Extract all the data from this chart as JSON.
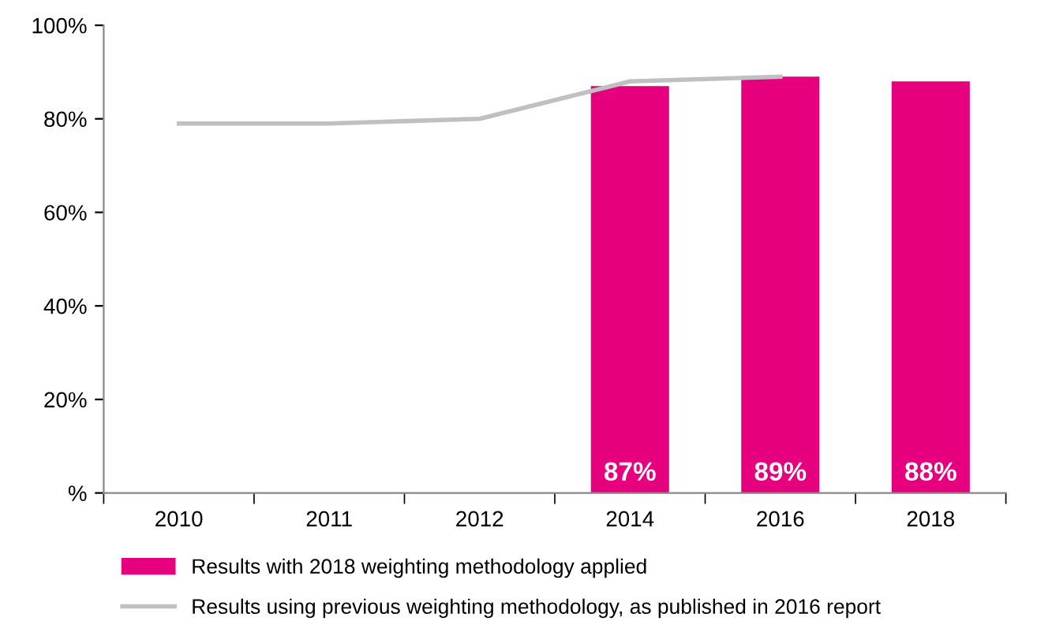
{
  "chart_data": {
    "type": "bar",
    "categories": [
      "2010",
      "2011",
      "2012",
      "2014",
      "2016",
      "2018"
    ],
    "series": [
      {
        "name": "Results with 2018 weighting methodology applied",
        "color": "#e6007e",
        "values": [
          null,
          null,
          null,
          87,
          89,
          88
        ],
        "value_labels": [
          null,
          null,
          null,
          "87%",
          "89%",
          "88%"
        ]
      },
      {
        "name": "Results using previous weighting methodology, as published in 2016 report",
        "type": "line",
        "color": "#c0c0c0",
        "values": [
          79,
          79,
          80,
          88,
          89,
          null
        ]
      }
    ],
    "ylim": [
      0,
      100
    ],
    "yticks": [
      {
        "value": 0,
        "label": "%"
      },
      {
        "value": 20,
        "label": "20%"
      },
      {
        "value": 40,
        "label": "40%"
      },
      {
        "value": 60,
        "label": "60%"
      },
      {
        "value": 80,
        "label": "80%"
      },
      {
        "value": 100,
        "label": "100%"
      }
    ],
    "grid": false,
    "legend": "bottom",
    "marker": "none",
    "line_style": "solid"
  }
}
